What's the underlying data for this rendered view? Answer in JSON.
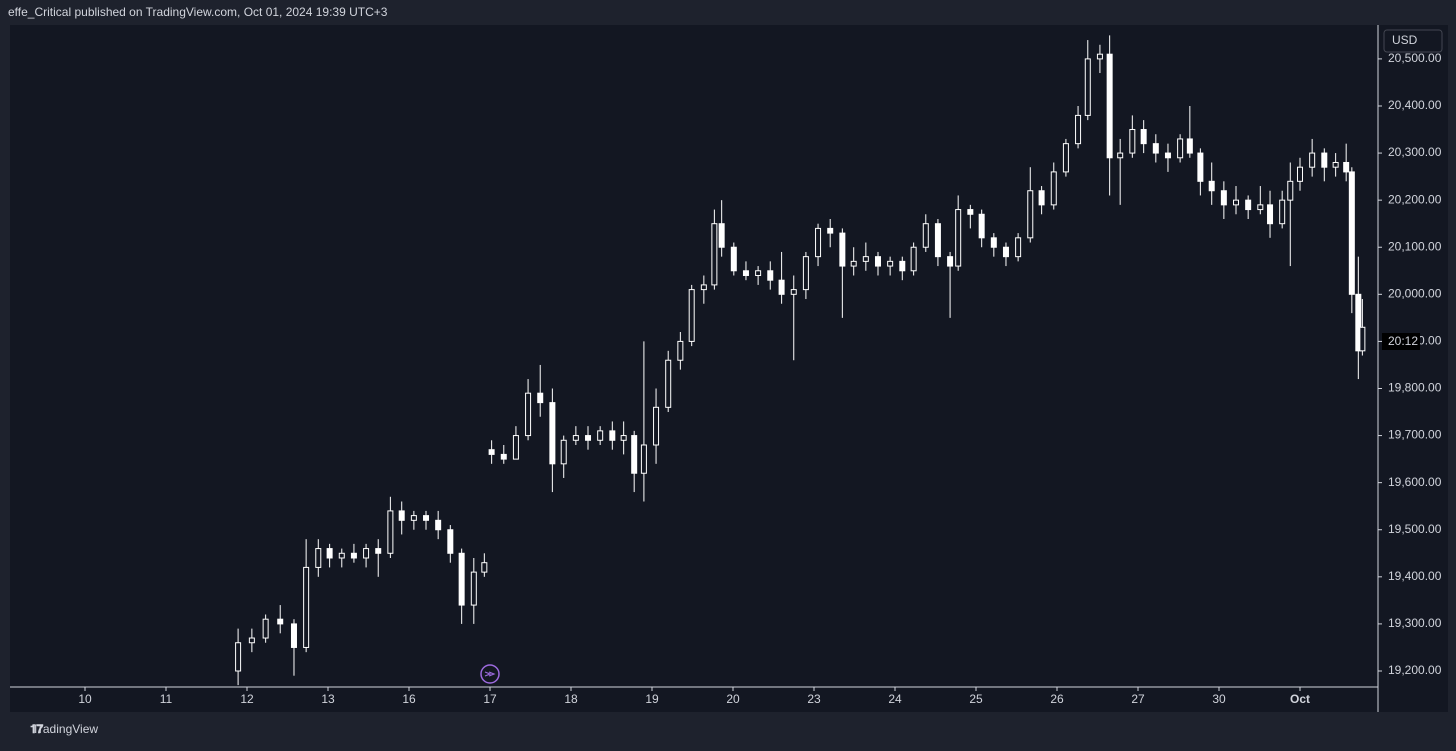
{
  "header": "effe_Critical published on TradingView.com, Oct 01, 2024 19:39 UTC+3",
  "footer": "TradingView",
  "chart_data": {
    "type": "candlestick",
    "currency": "USD",
    "countdown": "20:12",
    "up_color": "#ffffff",
    "down_color": "#ffffff",
    "x": [
      1.89,
      2.06,
      2.23,
      2.41,
      2.58,
      2.73,
      2.88,
      3.02,
      3.17,
      3.32,
      3.47,
      3.62,
      3.77,
      3.91,
      4.06,
      4.21,
      4.36,
      4.51,
      4.65,
      4.8,
      4.93,
      5.02,
      5.17,
      5.32,
      5.47,
      5.62,
      5.77,
      5.91,
      6.06,
      6.21,
      6.36,
      6.51,
      6.65,
      6.78,
      6.9,
      7.05,
      7.2,
      7.35,
      7.49,
      7.64,
      7.77,
      7.86,
      8.01,
      8.16,
      8.31,
      8.46,
      8.6,
      8.75,
      8.9,
      9.05,
      9.2,
      9.35,
      9.49,
      9.64,
      9.79,
      9.94,
      10.09,
      10.23,
      10.38,
      10.53,
      10.68,
      10.78,
      10.93,
      11.07,
      11.22,
      11.37,
      11.52,
      11.67,
      11.81,
      11.96,
      12.11,
      12.26,
      12.38,
      12.53,
      12.65,
      12.78,
      12.93,
      13.07,
      13.22,
      13.37,
      13.52,
      13.64,
      13.77,
      13.91,
      14.06,
      14.21,
      14.36,
      14.51,
      14.63,
      14.78,
      14.88,
      15.0,
      15.15,
      15.3,
      15.44,
      15.57,
      15.64,
      15.72,
      15.77
    ],
    "open": [
      19200,
      19260,
      19270,
      19310,
      19300,
      19250,
      19420,
      19460,
      19440,
      19450,
      19440,
      19460,
      19450,
      19540,
      19520,
      19530,
      19520,
      19500,
      19450,
      19340,
      19410,
      19670,
      19660,
      19650,
      19700,
      19790,
      19770,
      19640,
      19690,
      19700,
      19690,
      19710,
      19690,
      19700,
      19620,
      19680,
      19760,
      19860,
      19900,
      20010,
      20020,
      20150,
      20100,
      20050,
      20040,
      20050,
      20030,
      20000,
      20010,
      20080,
      20140,
      20130,
      20060,
      20070,
      20080,
      20060,
      20070,
      20050,
      20100,
      20150,
      20080,
      20060,
      20180,
      20170,
      20120,
      20100,
      20080,
      20120,
      20220,
      20190,
      20260,
      20320,
      20380,
      20500,
      20510,
      20290,
      20300,
      20350,
      20320,
      20300,
      20290,
      20330,
      20300,
      20240,
      20220,
      20190,
      20200,
      20180,
      20190,
      20150,
      20200,
      20240,
      20270,
      20300,
      20270,
      20280,
      20260,
      20000,
      19880
    ],
    "high": [
      19290,
      19290,
      19320,
      19340,
      19310,
      19480,
      19480,
      19470,
      19460,
      19470,
      19470,
      19480,
      19570,
      19560,
      19540,
      19540,
      19540,
      19510,
      19460,
      19440,
      19450,
      19690,
      19680,
      19720,
      19820,
      19850,
      19800,
      19700,
      19720,
      19720,
      19720,
      19730,
      19730,
      19710,
      19900,
      19800,
      19880,
      19920,
      20020,
      20040,
      20180,
      20200,
      20110,
      20070,
      20060,
      20070,
      20090,
      20040,
      20090,
      20150,
      20160,
      20140,
      20100,
      20110,
      20090,
      20080,
      20080,
      20110,
      20170,
      20160,
      20090,
      20210,
      20190,
      20180,
      20130,
      20110,
      20130,
      20270,
      20230,
      20280,
      20330,
      20400,
      20540,
      20530,
      20550,
      20330,
      20380,
      20370,
      20340,
      20320,
      20340,
      20400,
      20310,
      20280,
      20240,
      20230,
      20210,
      20230,
      20220,
      20220,
      20280,
      20290,
      20330,
      20310,
      20300,
      20320,
      20270,
      20080,
      19990
    ],
    "low": [
      19170,
      19240,
      19260,
      19280,
      19190,
      19240,
      19400,
      19420,
      19420,
      19430,
      19420,
      19400,
      19440,
      19490,
      19500,
      19500,
      19480,
      19430,
      19300,
      19300,
      19400,
      19640,
      19640,
      19650,
      19690,
      19740,
      19580,
      19610,
      19680,
      19670,
      19680,
      19670,
      19660,
      19580,
      19560,
      19640,
      19750,
      19840,
      19890,
      19980,
      20010,
      20080,
      20040,
      20030,
      20020,
      20010,
      19980,
      19860,
      19990,
      20060,
      20100,
      19950,
      20040,
      20050,
      20040,
      20040,
      20030,
      20040,
      20090,
      20060,
      19950,
      20050,
      20140,
      20100,
      20080,
      20060,
      20070,
      20110,
      20170,
      20180,
      20250,
      20310,
      20370,
      20470,
      20210,
      20190,
      20290,
      20300,
      20280,
      20260,
      20280,
      20290,
      20210,
      20190,
      20160,
      20170,
      20160,
      20170,
      20120,
      20140,
      20060,
      20220,
      20250,
      20240,
      20250,
      20240,
      19960,
      19820,
      19870
    ],
    "close": [
      19260,
      19270,
      19310,
      19300,
      19250,
      19420,
      19460,
      19440,
      19450,
      19440,
      19460,
      19450,
      19540,
      19520,
      19530,
      19520,
      19500,
      19450,
      19340,
      19410,
      19430,
      19660,
      19650,
      19700,
      19790,
      19770,
      19640,
      19690,
      19700,
      19690,
      19710,
      19690,
      19700,
      19620,
      19680,
      19760,
      19860,
      19900,
      20010,
      20020,
      20150,
      20100,
      20050,
      20040,
      20050,
      20030,
      20000,
      20010,
      20080,
      20140,
      20130,
      20060,
      20070,
      20080,
      20060,
      20070,
      20050,
      20100,
      20150,
      20080,
      20060,
      20180,
      20170,
      20120,
      20100,
      20080,
      20120,
      20220,
      20190,
      20260,
      20320,
      20380,
      20500,
      20510,
      20290,
      20300,
      20350,
      20320,
      20300,
      20290,
      20330,
      20300,
      20240,
      20220,
      20190,
      20200,
      20180,
      20190,
      20150,
      20200,
      20240,
      20270,
      20300,
      20270,
      20280,
      20260,
      20000,
      19880,
      19930
    ],
    "xlim": [
      -0.926,
      15.963
    ],
    "xticks": [
      {
        "value": 0,
        "label": "10"
      },
      {
        "value": 1,
        "label": "11"
      },
      {
        "value": 2,
        "label": "12"
      },
      {
        "value": 3,
        "label": "13"
      },
      {
        "value": 4,
        "label": "16"
      },
      {
        "value": 5,
        "label": "17"
      },
      {
        "value": 6,
        "label": "18"
      },
      {
        "value": 7,
        "label": "19"
      },
      {
        "value": 8,
        "label": "20"
      },
      {
        "value": 9,
        "label": "23"
      },
      {
        "value": 10,
        "label": "24"
      },
      {
        "value": 11,
        "label": "25"
      },
      {
        "value": 12,
        "label": "26"
      },
      {
        "value": 13,
        "label": "27"
      },
      {
        "value": 14,
        "label": "30"
      },
      {
        "value": 15,
        "label": "Oct"
      }
    ],
    "ylim": [
      19166,
      20572
    ],
    "yticks": [
      {
        "value": 19200,
        "label": "19,200.00"
      },
      {
        "value": 19300,
        "label": "19,300.00"
      },
      {
        "value": 19400,
        "label": "19,400.00"
      },
      {
        "value": 19500,
        "label": "19,500.00"
      },
      {
        "value": 19600,
        "label": "19,600.00"
      },
      {
        "value": 19700,
        "label": "19,700.00"
      },
      {
        "value": 19800,
        "label": "19,800.00"
      },
      {
        "value": 19900,
        "label": "19,900.00"
      },
      {
        "value": 20000,
        "label": "20,000.00"
      },
      {
        "value": 20100,
        "label": "20,100.00"
      },
      {
        "value": 20200,
        "label": "20,200.00"
      },
      {
        "value": 20300,
        "label": "20,300.00"
      },
      {
        "value": 20400,
        "label": "20,400.00"
      },
      {
        "value": 20500,
        "label": "20,500.00"
      }
    ]
  }
}
